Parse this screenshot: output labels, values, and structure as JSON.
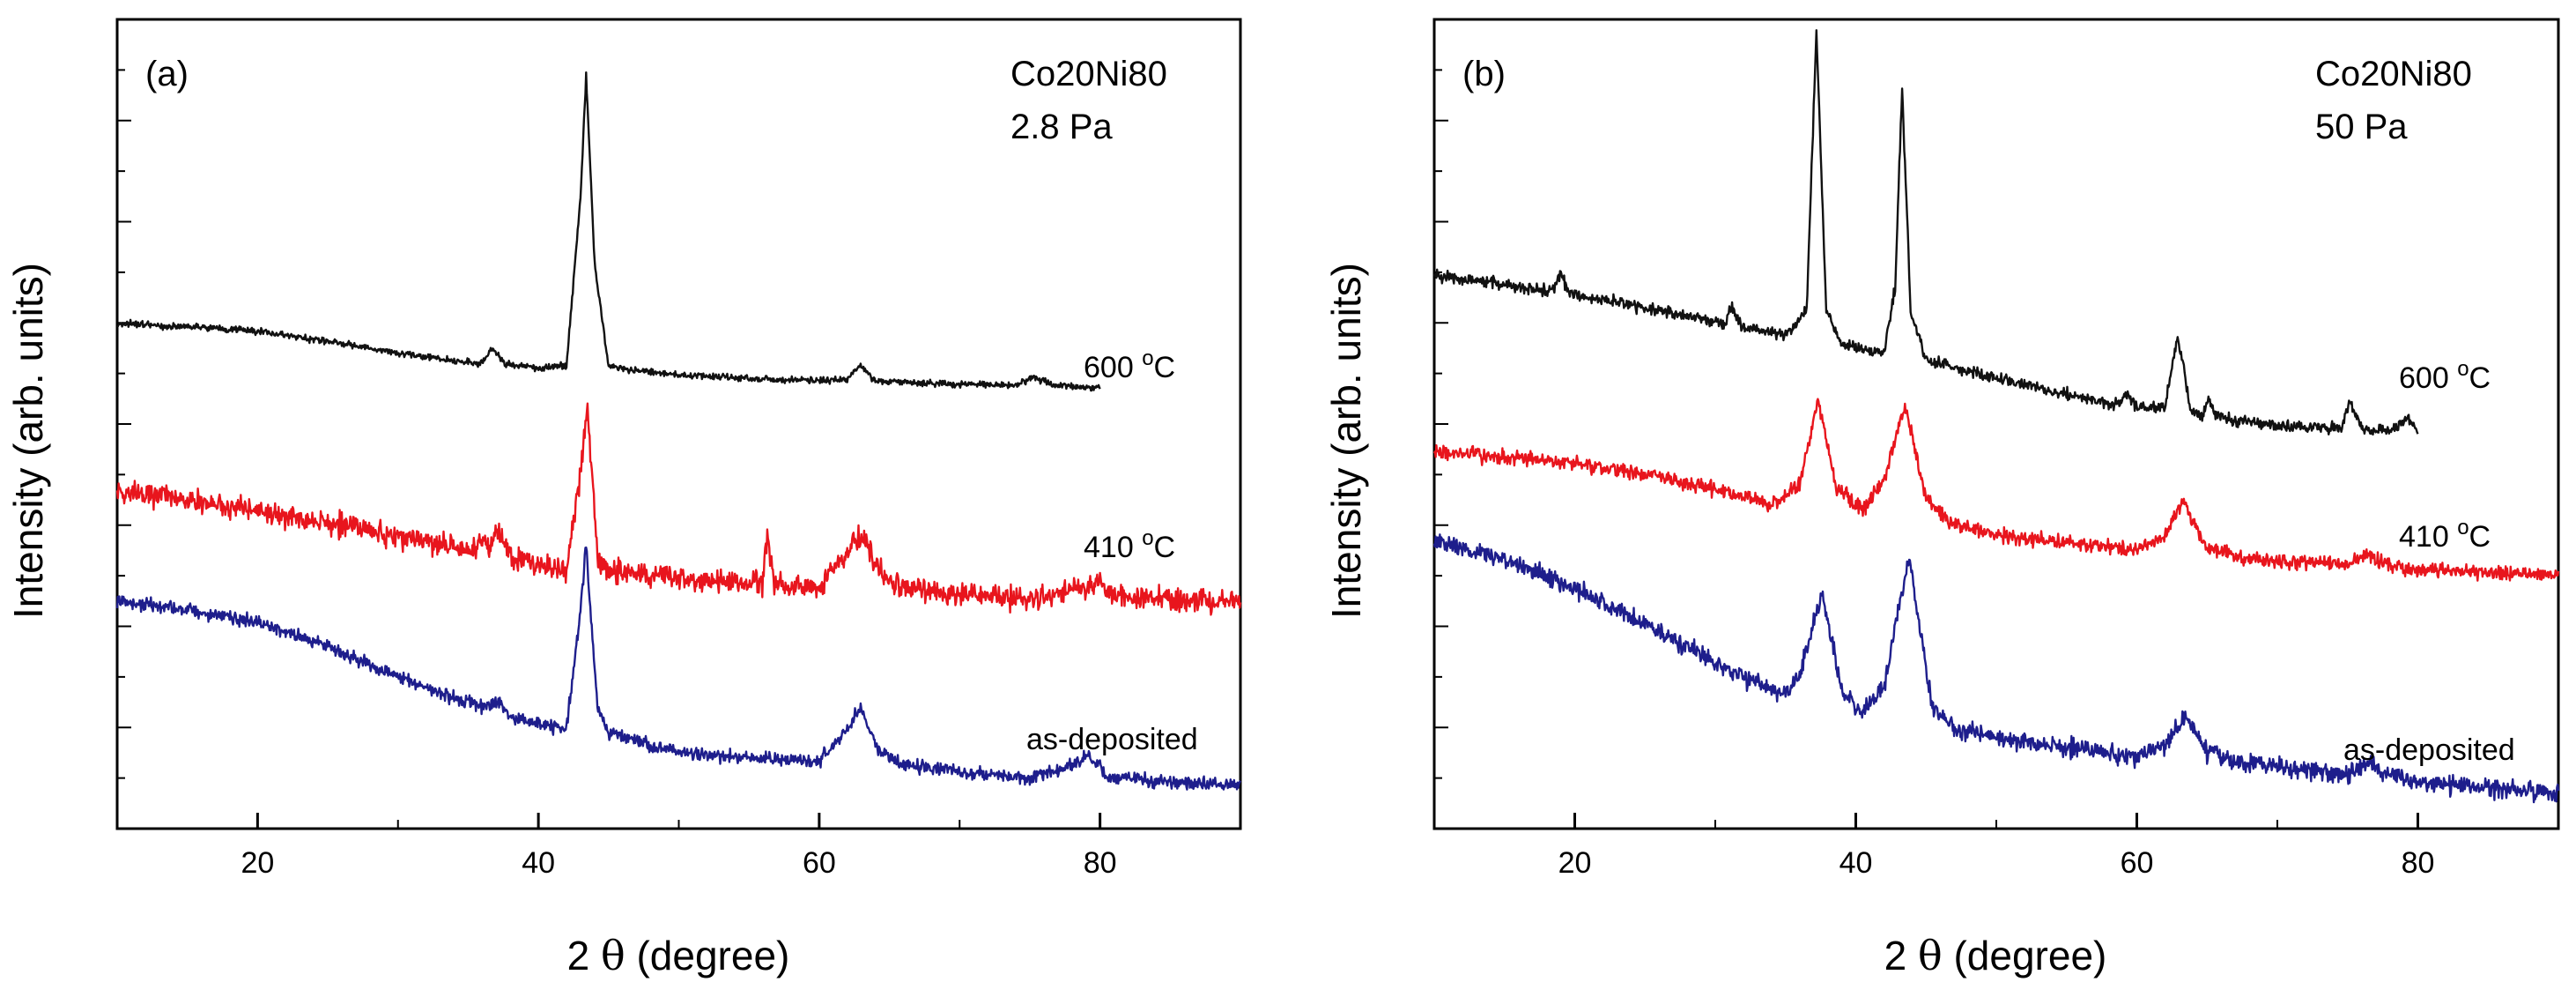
{
  "figure": {
    "ylabel": "Intensity (arb. units)",
    "xlabel_symbol": "θ",
    "xlabel_text": "(degree)"
  },
  "colors": {
    "as_deposited": "#1e1e8c",
    "t410": "#e8151d",
    "t600": "#111111",
    "axis": "#000000"
  },
  "chart_data": [
    {
      "type": "line",
      "panel": "(a)",
      "title_lines": [
        "Co20Ni80",
        "2.8 Pa"
      ],
      "xlabel": "2 θ (degree)",
      "ylabel": "Intensity (arb. units)",
      "xlim": [
        10,
        90
      ],
      "ylim": [
        0,
        100
      ],
      "xticks": [
        20,
        40,
        60,
        80
      ],
      "xtick_labels": [
        "20",
        "40",
        "60",
        "80"
      ],
      "grid": false,
      "series": [
        {
          "name": "600 °C",
          "label_main": "600 ",
          "label_deg": "o",
          "label_unit": "C",
          "color": "#111111",
          "x": [
            10,
            15,
            20,
            25,
            30,
            35,
            36,
            36.8,
            37.5,
            40,
            42,
            43.0,
            43.4,
            44.0,
            45,
            50,
            55,
            60,
            62,
            62.9,
            64,
            70,
            74,
            75.3,
            76.5,
            80
          ],
          "y": [
            62.4,
            62.0,
            61.5,
            60.2,
            58.8,
            57.6,
            57.6,
            59.5,
            57.5,
            56.9,
            57.2,
            78,
            93,
            70,
            57.1,
            56.1,
            55.6,
            55.4,
            55.5,
            57.3,
            55.3,
            54.9,
            54.8,
            55.9,
            54.8,
            54.5
          ],
          "noise": 0.4
        },
        {
          "name": "410 °C",
          "label_main": "410 ",
          "label_deg": "o",
          "label_unit": "C",
          "color": "#e8151d",
          "x": [
            10,
            15,
            20,
            25,
            30,
            35,
            36.5,
            37.2,
            38,
            40,
            42,
            43.0,
            43.5,
            44.2,
            45,
            50,
            55,
            56.0,
            56.3,
            56.8,
            58,
            60,
            61.5,
            63.0,
            64.5,
            66,
            70,
            75,
            79,
            79.8,
            80.6,
            85,
            90
          ],
          "y": [
            41.5,
            40.7,
            39.3,
            37.8,
            36.1,
            34.2,
            35.0,
            37.2,
            33.8,
            32.4,
            31.9,
            44,
            52,
            33.5,
            31.8,
            30.9,
            30.3,
            30.5,
            36.5,
            30.4,
            29.8,
            29.9,
            33.1,
            36.3,
            31.1,
            29.7,
            28.8,
            28.4,
            29.7,
            30.7,
            28.9,
            28.3,
            28.0
          ],
          "noise": 1.4
        },
        {
          "name": "as-deposited",
          "label_main": "as-deposited",
          "label_deg": "",
          "label_unit": "",
          "color": "#1e1e8c",
          "x": [
            10,
            15,
            20,
            25,
            30,
            35,
            36.5,
            37.2,
            38,
            40,
            42,
            43.0,
            43.4,
            44.2,
            45,
            50,
            55,
            60,
            61.8,
            62.9,
            64.2,
            66,
            70,
            75,
            78.2,
            79.2,
            80.4,
            85,
            90
          ],
          "y": [
            28.0,
            27.1,
            25.5,
            22.5,
            18.7,
            15.6,
            15.0,
            15.9,
            13.9,
            12.9,
            12.4,
            27.0,
            34.8,
            15.1,
            11.9,
            9.4,
            8.8,
            8.3,
            11.8,
            14.8,
            9.9,
            7.9,
            7.1,
            6.2,
            8.0,
            9.1,
            6.5,
            5.7,
            5.4
          ],
          "noise": 0.8
        }
      ]
    },
    {
      "type": "line",
      "panel": "(b)",
      "title_lines": [
        "Co20Ni80",
        "50 Pa"
      ],
      "xlabel": "2 θ (degree)",
      "ylabel": "Intensity (arb. units)",
      "xlim": [
        10,
        90
      ],
      "ylim": [
        0,
        100
      ],
      "xticks": [
        20,
        40,
        60,
        80
      ],
      "xtick_labels": [
        "20",
        "40",
        "60",
        "80"
      ],
      "grid": false,
      "series": [
        {
          "name": "600 °C",
          "label_main": "600 ",
          "label_deg": "o",
          "label_unit": "C",
          "color": "#111111",
          "x": [
            10,
            15,
            18.5,
            19.0,
            19.6,
            25,
            30,
            30.7,
            31.2,
            31.9,
            35,
            36.5,
            37.2,
            37.9,
            39,
            42,
            42.8,
            43.3,
            43.9,
            45,
            50,
            55,
            58.8,
            59.3,
            59.9,
            62,
            62.9,
            63.8,
            64.7,
            65.1,
            65.6,
            70,
            74.5,
            75.2,
            76.0,
            78,
            79.3,
            80
          ],
          "y": [
            68.4,
            67.2,
            66.4,
            69.0,
            66.1,
            64.4,
            62.6,
            62.3,
            64.9,
            62.0,
            61.0,
            64.0,
            98.7,
            64.0,
            59.9,
            58.7,
            67.0,
            91.5,
            64.0,
            57.9,
            55.7,
            53.7,
            52.3,
            53.9,
            52.1,
            52.1,
            60.9,
            52.0,
            51.1,
            53.1,
            50.9,
            49.8,
            49.5,
            52.8,
            49.3,
            49.0,
            50.7,
            48.8
          ],
          "noise": 0.7
        },
        {
          "name": "410 °C",
          "label_main": "410 ",
          "label_deg": "o",
          "label_unit": "C",
          "color": "#e8151d",
          "x": [
            10,
            15,
            20,
            25,
            30,
            34,
            36.0,
            37.3,
            38.6,
            40.5,
            42.0,
            43.5,
            45.0,
            47,
            50,
            55,
            60,
            61.8,
            63.3,
            64.8,
            68,
            75,
            76.4,
            77.8,
            80,
            85,
            90
          ],
          "y": [
            46.4,
            46.0,
            45.1,
            43.8,
            42.0,
            40.0,
            42.5,
            53.1,
            42.3,
            39.4,
            43.0,
            52.3,
            40.6,
            37.5,
            36.3,
            35.3,
            34.5,
            35.8,
            40.6,
            34.9,
            33.2,
            32.6,
            33.8,
            32.6,
            32.0,
            31.6,
            31.4
          ],
          "noise": 0.9
        },
        {
          "name": "as-deposited",
          "label_main": "as-deposited",
          "label_deg": "",
          "label_unit": "",
          "color": "#1e1e8c",
          "x": [
            10,
            15,
            20,
            25,
            30,
            32,
            35,
            36.0,
            37.6,
            39.0,
            40.5,
            42.0,
            43.8,
            45.4,
            47,
            50,
            55,
            60,
            62.0,
            63.5,
            65.0,
            67,
            70,
            75,
            76.5,
            78,
            80,
            85,
            90
          ],
          "y": [
            35.4,
            33.4,
            29.6,
            25.3,
            20.5,
            18.7,
            16.6,
            19.0,
            29.0,
            17.2,
            14.2,
            17.5,
            33.6,
            15.3,
            12.4,
            11.3,
            10.0,
            8.8,
            10.2,
            13.7,
            9.4,
            8.4,
            7.6,
            6.6,
            8.2,
            6.4,
            5.8,
            5.0,
            4.5
          ],
          "noise": 1.1
        }
      ]
    }
  ]
}
